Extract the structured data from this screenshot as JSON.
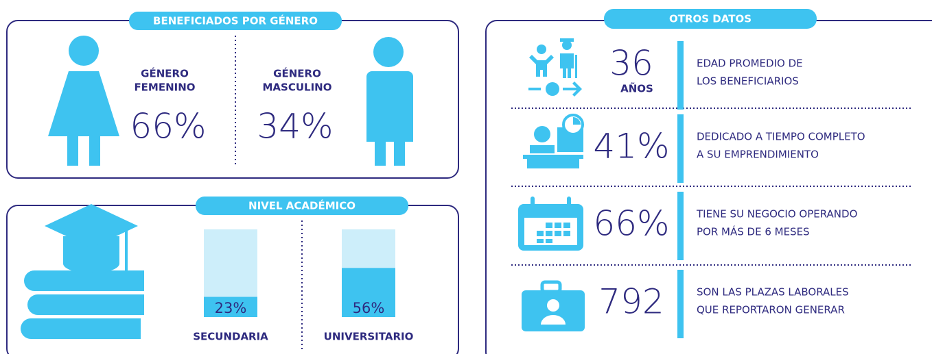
{
  "gender": {
    "title": "BENEFICIADOS POR GÉNERO",
    "female": {
      "label_lines": [
        "GÉNERO",
        "FEMENINO"
      ],
      "value": "66%"
    },
    "male": {
      "label_lines": [
        "GÉNERO",
        "MASCULINO"
      ],
      "value": "34%"
    }
  },
  "chart_data": {
    "type": "bar",
    "title": "NIVEL ACADÉMICO",
    "categories": [
      "SECUNDARIA",
      "UNIVERSITARIO"
    ],
    "values": [
      23,
      56
    ],
    "value_labels": [
      "23%",
      "56%"
    ],
    "ylim": [
      0,
      100
    ],
    "color": "#3ec3f0",
    "track_color": "#cdeefa"
  },
  "other": {
    "title": "OTROS DATOS",
    "items": [
      {
        "value": "36",
        "unit": "AÑOS",
        "lines": [
          "EDAD PROMEDIO DE",
          "LOS BENEFICIARIOS"
        ]
      },
      {
        "value": "41%",
        "lines": [
          "DEDICADO A TIEMPO COMPLETO",
          "A SU EMPRENDIMIENTO"
        ]
      },
      {
        "value": "66%",
        "lines": [
          "TIENE SU NEGOCIO OPERANDO",
          "POR MÁS DE 6 MESES"
        ]
      },
      {
        "value": "792",
        "lines": [
          "SON LAS PLAZAS LABORALES",
          "QUE REPORTARON GENERAR"
        ]
      }
    ]
  }
}
